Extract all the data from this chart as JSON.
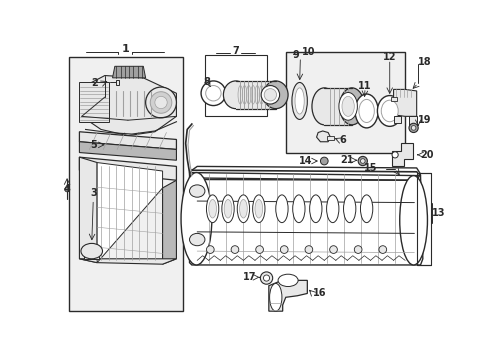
{
  "bg_color": "#ffffff",
  "lc": "#2a2a2a",
  "gray1": "#d0d0d0",
  "gray2": "#a0a0a0",
  "gray3": "#e8e8e8",
  "gray4": "#b8b8b8",
  "box_bg": "#f0f0f0"
}
